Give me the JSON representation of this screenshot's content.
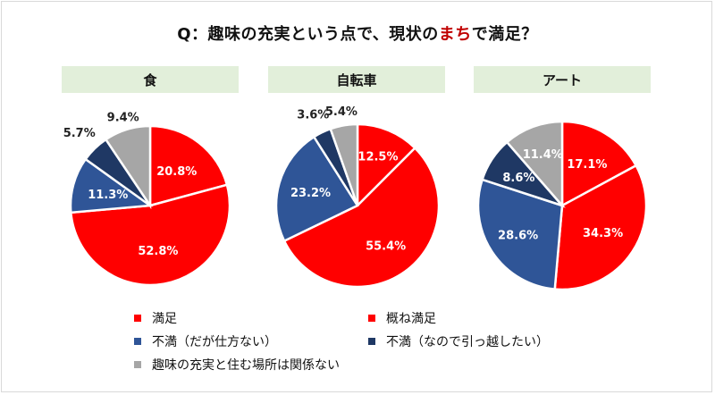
{
  "title": {
    "before": "Q：趣味の充実という点で、現状の",
    "accent": "まち",
    "after": "で満足？"
  },
  "colors": {
    "accent": "#c00000",
    "header_bg": "#e2efda",
    "series": [
      "#ff0000",
      "#ff0000",
      "#2f5597",
      "#1f3864",
      "#a6a6a6"
    ]
  },
  "legend": [
    "満足",
    "概ね満足",
    "不満（だが仕方ない）",
    "不満（なので引っ越したい）",
    "趣味の充実と住む場所は関係ない"
  ],
  "chart_data": [
    {
      "type": "pie",
      "title": "食",
      "categories": [
        "満足",
        "概ね満足",
        "不満（だが仕方ない）",
        "不満（なので引っ越したい）",
        "趣味の充実と住む場所は関係ない"
      ],
      "values": [
        20.8,
        52.8,
        11.3,
        5.7,
        9.4
      ],
      "labels": [
        "20.8%",
        "52.8%",
        "11.3%",
        "5.7%",
        "9.4%"
      ]
    },
    {
      "type": "pie",
      "title": "自転車",
      "categories": [
        "満足",
        "概ね満足",
        "不満（だが仕方ない）",
        "不満（なので引っ越したい）",
        "趣味の充実と住む場所は関係ない"
      ],
      "values": [
        12.5,
        55.4,
        23.2,
        3.6,
        5.4
      ],
      "labels": [
        "12.5%",
        "55.4%",
        "23.2%",
        "3.6%",
        "5.4%"
      ]
    },
    {
      "type": "pie",
      "title": "アート",
      "categories": [
        "満足",
        "概ね満足",
        "不満（だが仕方ない）",
        "不満（なので引っ越したい）",
        "趣味の充実と住む場所は関係ない"
      ],
      "values": [
        17.1,
        34.3,
        28.6,
        8.6,
        11.4
      ],
      "labels": [
        "17.1%",
        "34.3%",
        "28.6%",
        "8.6%",
        "11.4%"
      ]
    }
  ]
}
